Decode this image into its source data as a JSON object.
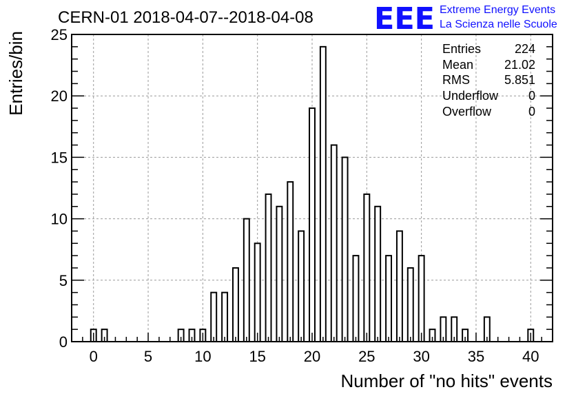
{
  "header": {
    "title": "CERN-01 2018-04-07--2018-04-08",
    "logo_letters": "EEE",
    "logo_line1": "Extreme Energy Events",
    "logo_line2": "La Scienza nelle Scuole",
    "logo_color": "#1010ff"
  },
  "stats": {
    "rows": [
      {
        "label": "Entries",
        "value": "224"
      },
      {
        "label": "Mean",
        "value": "21.02"
      },
      {
        "label": "RMS",
        "value": "5.851"
      },
      {
        "label": "Underflow",
        "value": "0"
      },
      {
        "label": "Overflow",
        "value": "0"
      }
    ]
  },
  "chart_data": {
    "type": "bar",
    "title": "CERN-01 2018-04-07--2018-04-08",
    "xlabel": "Number of \"no hits\" events",
    "ylabel": "Entries/bin",
    "xlim": [
      -2,
      42
    ],
    "ylim": [
      0,
      25
    ],
    "bin_width": 0.5,
    "grid": true,
    "x_ticks": [
      0,
      5,
      10,
      15,
      20,
      25,
      30,
      35,
      40
    ],
    "y_ticks": [
      0,
      5,
      10,
      15,
      20,
      25
    ],
    "x": [
      0,
      1,
      8,
      9,
      10,
      11,
      12,
      13,
      14,
      15,
      16,
      17,
      18,
      19,
      20,
      21,
      22,
      23,
      24,
      25,
      26,
      27,
      28,
      29,
      30,
      31,
      32,
      33,
      34,
      36,
      40
    ],
    "values": [
      1,
      1,
      1,
      1,
      1,
      4,
      4,
      6,
      10,
      8,
      12,
      11,
      13,
      9,
      19,
      24,
      16,
      15,
      7,
      12,
      11,
      7,
      9,
      6,
      7,
      1,
      2,
      2,
      1,
      2,
      1
    ],
    "bar_color": "#ffffff",
    "edge_color": "#000000"
  }
}
